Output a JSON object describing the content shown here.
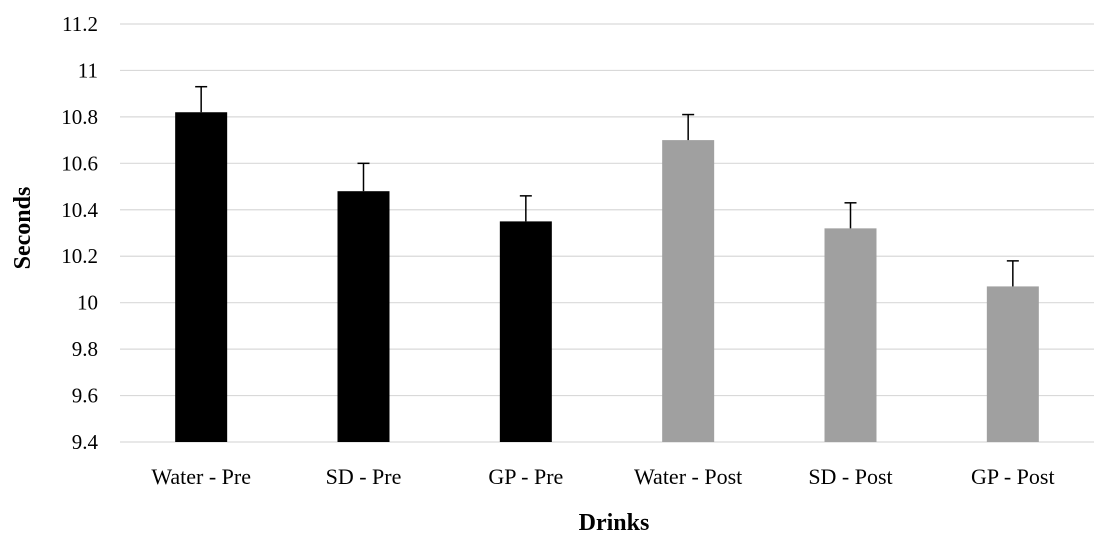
{
  "chart_data": {
    "type": "bar",
    "title": "",
    "xlabel": "Drinks",
    "ylabel": "Seconds",
    "ylim": [
      9.4,
      11.2
    ],
    "yticks": [
      9.4,
      9.6,
      9.8,
      10,
      10.2,
      10.4,
      10.6,
      10.8,
      11,
      11.2
    ],
    "ytick_labels": [
      "9.4",
      "9.6",
      "9.8",
      "10",
      "10.2",
      "10.4",
      "10.6",
      "10.8",
      "11",
      "11.2"
    ],
    "categories": [
      "Water - Pre",
      "SD - Pre",
      "GP - Pre",
      "Water - Post",
      "SD - Post",
      "GP - Post"
    ],
    "values": [
      10.82,
      10.48,
      10.35,
      10.7,
      10.32,
      10.07
    ],
    "errors": [
      0.11,
      0.12,
      0.11,
      0.11,
      0.11,
      0.11
    ],
    "colors": [
      "#000000",
      "#000000",
      "#000000",
      "#a0a0a0",
      "#a0a0a0",
      "#a0a0a0"
    ],
    "grid": true,
    "legend": "none"
  }
}
